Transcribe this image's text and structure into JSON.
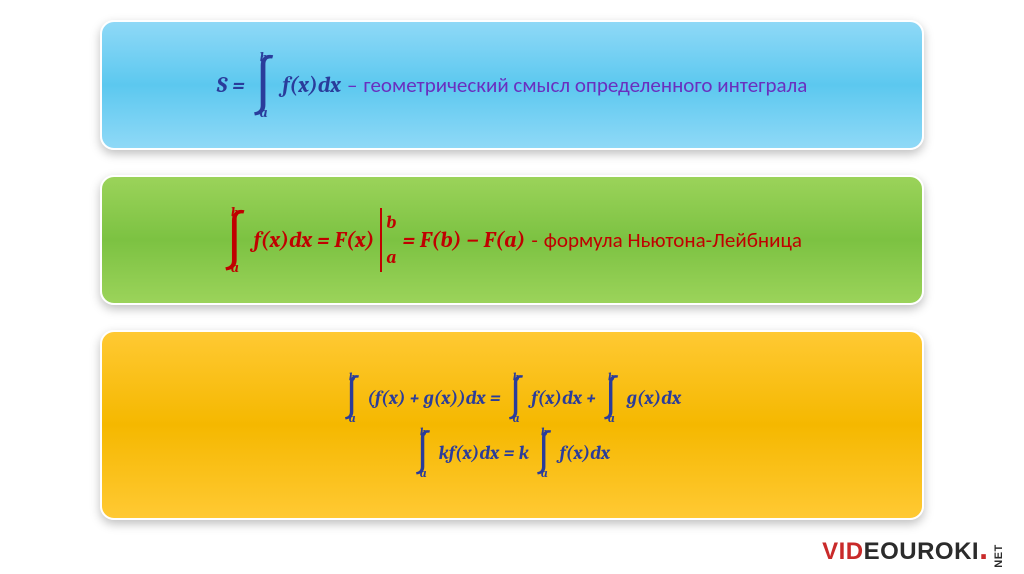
{
  "colors": {
    "formula_blue": "#2a3c9b",
    "formula_red": "#c00000",
    "desc_purple": "#6a2fbf",
    "desc_red": "#c00000",
    "bg": "#ffffff"
  },
  "panel1": {
    "bg_gradient": [
      "#8fd9f7",
      "#5cc8ef",
      "#8fd9f7"
    ],
    "formula_color": "#2a3c9b",
    "desc_color": "#6a2fbf",
    "S_eq": "S =",
    "upper": "b",
    "lower": "a",
    "integrand": "f(x)dx",
    "dash": " – ",
    "description": "геометрический смысл определенного интеграла"
  },
  "panel2": {
    "bg_gradient": [
      "#9bd35a",
      "#7cc242",
      "#9bd35a"
    ],
    "formula_color": "#c00000",
    "desc_color": "#c00000",
    "upper": "b",
    "lower": "a",
    "lhs_integrand": "f(x)dx = F(x)",
    "eval_upper": "b",
    "eval_lower": "a",
    "rhs": "= F(b) − F(a)",
    "dash": " - ",
    "description": "формула Ньютона-Лейбница"
  },
  "panel3": {
    "bg_gradient": [
      "#ffc933",
      "#f5b800",
      "#ffc933"
    ],
    "formula_color": "#2a3c9b",
    "upper": "b",
    "lower": "a",
    "line1": {
      "seg1": "(f(x) + g(x))dx =",
      "seg2": "f(x)dx +",
      "seg3": "g(x)dx"
    },
    "line2": {
      "seg1": "kf(x)dx = k",
      "seg2": "f(x)dx"
    }
  },
  "watermark": {
    "part1": "VID",
    "part2": "EOUROKI",
    "dot": ".",
    "net": "NET",
    "color_red": "#c92a2a",
    "color_dark": "#2b2b2b"
  }
}
